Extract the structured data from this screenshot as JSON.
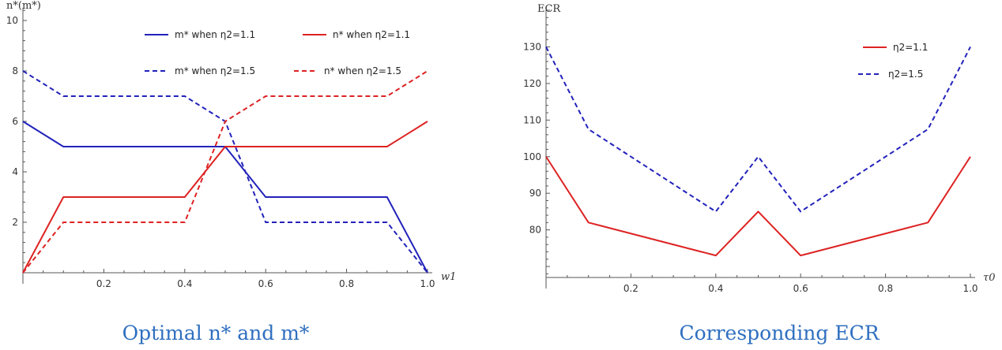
{
  "charts": [
    {
      "caption": "Optimal n* and m*",
      "ylabel": "n*(m*)",
      "xlabel": "w1",
      "xticks": [
        "0.2",
        "0.4",
        "0.6",
        "0.8",
        "1.0"
      ],
      "yticks": [
        "2",
        "4",
        "6",
        "8",
        "10"
      ]
    },
    {
      "caption": "Corresponding ECR",
      "ylabel": "ECR",
      "xlabel": "τ0",
      "xticks": [
        "0.2",
        "0.4",
        "0.6",
        "0.8",
        "1.0"
      ],
      "yticks": [
        "80",
        "90",
        "100",
        "110",
        "120",
        "130"
      ]
    }
  ],
  "chart_data": [
    {
      "type": "line",
      "title": "Optimal n* and m*",
      "xlabel": "w1",
      "ylabel": "n*(m*)",
      "xlim": [
        0,
        1.0
      ],
      "ylim": [
        0,
        10.5
      ],
      "x": [
        0,
        0.1,
        0.4,
        0.5,
        0.6,
        0.9,
        1.0
      ],
      "legend_position": "top",
      "series": [
        {
          "name": "m* when η2=1.1",
          "color": "#2222bb",
          "dash": "solid",
          "values": [
            6,
            5,
            5,
            5,
            3,
            3,
            0
          ]
        },
        {
          "name": "n* when η2=1.1",
          "color": "#dd2222",
          "dash": "solid",
          "values": [
            0,
            3,
            3,
            5,
            5,
            5,
            6
          ]
        },
        {
          "name": "m* when η2=1.5",
          "color": "#2222bb",
          "dash": "dashed",
          "values": [
            8,
            7,
            7,
            6,
            2,
            2,
            0
          ]
        },
        {
          "name": "n* when η2=1.5",
          "color": "#dd2222",
          "dash": "dashed",
          "values": [
            0,
            2,
            2,
            6,
            7,
            7,
            8
          ]
        }
      ]
    },
    {
      "type": "line",
      "title": "Corresponding ECR",
      "xlabel": "τ0",
      "ylabel": "ECR",
      "xlim": [
        0,
        1.0
      ],
      "ylim": [
        67,
        140
      ],
      "x": [
        0,
        0.1,
        0.4,
        0.5,
        0.6,
        0.9,
        1.0
      ],
      "legend_position": "top-right",
      "series": [
        {
          "name": "η2=1.1",
          "color": "#dd2222",
          "dash": "solid",
          "values": [
            100,
            82,
            73,
            85,
            73,
            82,
            100
          ]
        },
        {
          "name": "η2=1.5",
          "color": "#2222bb",
          "dash": "dashed",
          "values": [
            130,
            107.5,
            85,
            100,
            85,
            107.5,
            130
          ]
        }
      ]
    }
  ]
}
